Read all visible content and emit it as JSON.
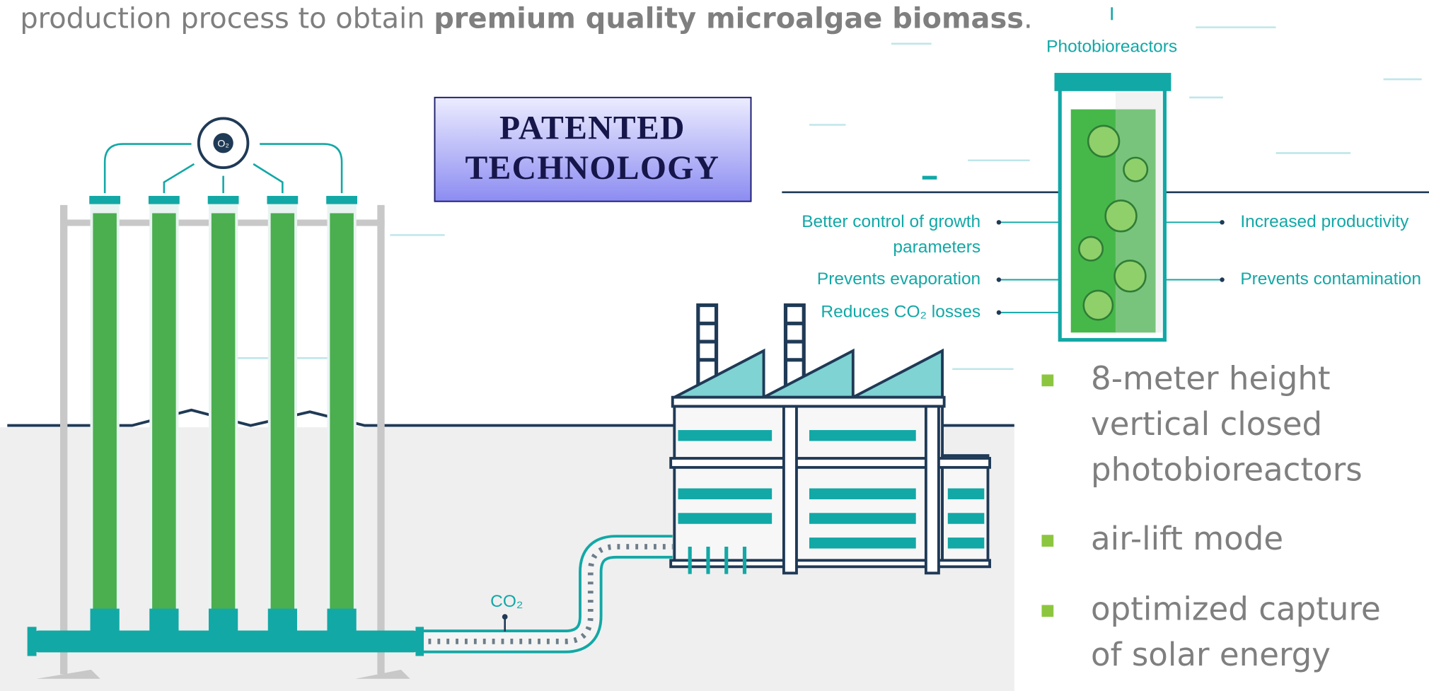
{
  "intro": {
    "before": "production process to obtain ",
    "bold": "premium quality microalgae biomass",
    "after": "."
  },
  "badge": {
    "lines": [
      "PATENTED",
      "TECHNOLOGY"
    ]
  },
  "column_label": "O₂",
  "pipe_label": "CO₂",
  "panel": {
    "title": "Photobioreactors",
    "left_features": [
      {
        "lines": [
          "Better control of growth",
          "parameters"
        ]
      },
      {
        "lines": [
          "Prevents evaporation"
        ]
      },
      {
        "lines": [
          "Reduces CO₂ losses"
        ]
      }
    ],
    "right_features": [
      {
        "lines": [
          "Increased productivity"
        ]
      },
      {
        "lines": [
          "Prevents contamination"
        ]
      }
    ]
  },
  "bullets": [
    {
      "lines": [
        "8-meter height",
        "vertical closed",
        "photobioreactors"
      ]
    },
    {
      "lines": [
        "air-lift mode"
      ]
    },
    {
      "lines": [
        "optimized capture",
        "of solar energy"
      ]
    }
  ]
}
